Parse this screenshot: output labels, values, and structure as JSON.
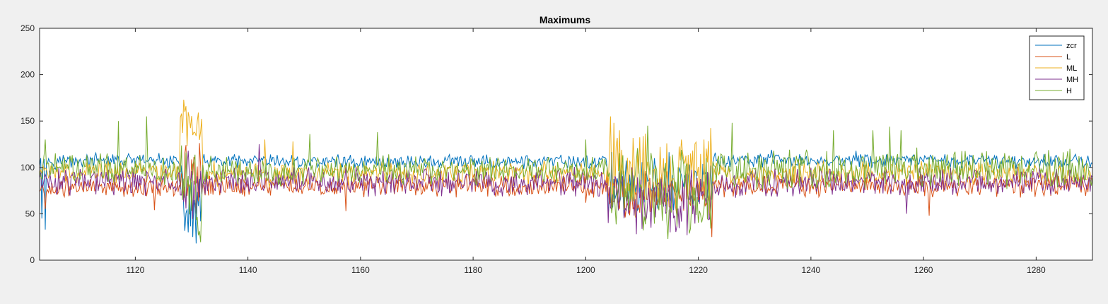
{
  "window": {
    "background": "#f0f0f0"
  },
  "chart_data": {
    "type": "line",
    "title": "Maximums",
    "xlabel": "",
    "ylabel": "",
    "xlim": [
      1103,
      1290
    ],
    "ylim": [
      0,
      250
    ],
    "xticks": [
      1120,
      1140,
      1160,
      1180,
      1200,
      1220,
      1240,
      1260,
      1280
    ],
    "yticks": [
      0,
      50,
      100,
      150,
      200,
      250
    ],
    "grid": false,
    "legend_position": "top-right",
    "x_step": 0.2,
    "series": [
      {
        "name": "zcr",
        "color": "#0072bd",
        "segments": [
          {
            "x": [
              1103,
              1128
            ],
            "level": 107,
            "amp": 6
          },
          {
            "x": [
              1128,
              1132
            ],
            "level": 60,
            "amp": 30
          },
          {
            "x": [
              1132,
              1204
            ],
            "level": 106,
            "amp": 6
          },
          {
            "x": [
              1204,
              1222.5
            ],
            "level": 80,
            "amp": 25
          },
          {
            "x": [
              1222.5,
              1290
            ],
            "level": 107,
            "amp": 6
          }
        ],
        "points": [
          [
            1103.3,
            110
          ],
          [
            1103.5,
            45
          ],
          [
            1104,
            33
          ],
          [
            1129.5,
            30
          ],
          [
            1130.2,
            25
          ],
          [
            1130.8,
            18
          ],
          [
            1156,
            114
          ],
          [
            1231,
            114
          ],
          [
            1233,
            119
          ],
          [
            1248,
            118
          ]
        ]
      },
      {
        "name": "L",
        "color": "#d95319",
        "segments": [
          {
            "x": [
              1103,
              1128
            ],
            "level": 78,
            "amp": 9
          },
          {
            "x": [
              1128,
              1132
            ],
            "level": 90,
            "amp": 25
          },
          {
            "x": [
              1132,
              1204
            ],
            "level": 80,
            "amp": 9
          },
          {
            "x": [
              1204,
              1222.5
            ],
            "level": 70,
            "amp": 20
          },
          {
            "x": [
              1222.5,
              1290
            ],
            "level": 80,
            "amp": 9
          }
        ],
        "points": [
          [
            1104,
            55
          ],
          [
            1123.5,
            54
          ],
          [
            1129,
            124
          ],
          [
            1157.5,
            53
          ],
          [
            1200,
            62
          ],
          [
            1222.5,
            25
          ],
          [
            1261,
            48
          ]
        ]
      },
      {
        "name": "ML",
        "color": "#edb120",
        "segments": [
          {
            "x": [
              1103,
              1128
            ],
            "level": 94,
            "amp": 10
          },
          {
            "x": [
              1128,
              1132
            ],
            "level": 145,
            "amp": 15
          },
          {
            "x": [
              1132,
              1204
            ],
            "level": 93,
            "amp": 10
          },
          {
            "x": [
              1204,
              1222.5
            ],
            "level": 95,
            "amp": 35
          },
          {
            "x": [
              1222.5,
              1290
            ],
            "level": 94,
            "amp": 10
          }
        ],
        "points": [
          [
            1128.7,
            173
          ],
          [
            1129,
            166
          ],
          [
            1131,
            150
          ],
          [
            1204.5,
            155
          ],
          [
            1205,
            148
          ],
          [
            1206,
            140
          ],
          [
            1217,
            130
          ],
          [
            1221,
            130
          ],
          [
            1143,
            130
          ],
          [
            1148,
            128
          ]
        ]
      },
      {
        "name": "MH",
        "color": "#7e2f8e",
        "segments": [
          {
            "x": [
              1103,
              1128
            ],
            "level": 84,
            "amp": 12
          },
          {
            "x": [
              1128,
              1132
            ],
            "level": 80,
            "amp": 25
          },
          {
            "x": [
              1132,
              1204
            ],
            "level": 84,
            "amp": 12
          },
          {
            "x": [
              1204,
              1222.5
            ],
            "level": 65,
            "amp": 25
          },
          {
            "x": [
              1222.5,
              1290
            ],
            "level": 84,
            "amp": 12
          }
        ],
        "points": [
          [
            1129.5,
            118
          ],
          [
            1142,
            125
          ],
          [
            1209,
            28
          ],
          [
            1215,
            30
          ],
          [
            1218,
            27
          ],
          [
            1257,
            50
          ]
        ]
      },
      {
        "name": "H",
        "color": "#77ac30",
        "segments": [
          {
            "x": [
              1103,
              1128
            ],
            "level": 98,
            "amp": 13
          },
          {
            "x": [
              1128,
              1132
            ],
            "level": 70,
            "amp": 40
          },
          {
            "x": [
              1132,
              1204
            ],
            "level": 97,
            "amp": 12
          },
          {
            "x": [
              1204,
              1222.5
            ],
            "level": 75,
            "amp": 35
          },
          {
            "x": [
              1222.5,
              1290
            ],
            "level": 98,
            "amp": 16
          }
        ],
        "points": [
          [
            1104,
            130
          ],
          [
            1117,
            150
          ],
          [
            1122,
            155
          ],
          [
            1151,
            136
          ],
          [
            1163,
            138
          ],
          [
            1200,
            130
          ],
          [
            1211,
            145
          ],
          [
            1226,
            148
          ],
          [
            1244,
            140
          ],
          [
            1251,
            140
          ],
          [
            1254,
            144
          ],
          [
            1256,
            140
          ],
          [
            1286,
            120
          ]
        ]
      }
    ]
  }
}
